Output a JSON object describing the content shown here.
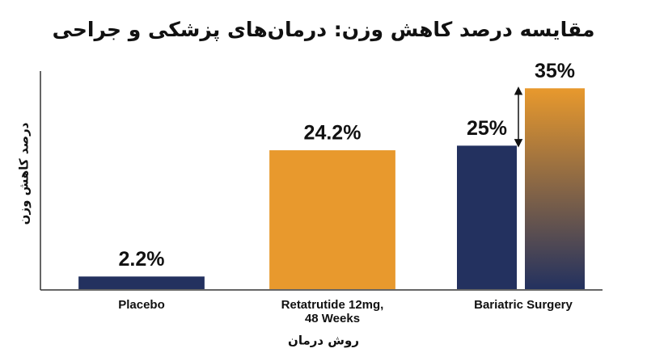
{
  "chart_data": {
    "type": "bar",
    "title": "مقایسه درصد کاهش وزن: درمان‌های پزشکی و جراحی",
    "y_label": "درصد کاهش وزن",
    "x_label": "روش درمان",
    "categories": [
      "Placebo",
      [
        "Retatrutide 12mg,",
        "48 Weeks"
      ],
      "Bariatric Surgery"
    ],
    "series": [
      {
        "color": "#23315f",
        "values": [
          2.2,
          null,
          25
        ],
        "value_labels": [
          "2.2%",
          null,
          "25%"
        ]
      },
      {
        "color": "#e8992d",
        "values": [
          null,
          24.2,
          35
        ],
        "value_labels": [
          null,
          "24.2%",
          "35%"
        ]
      }
    ],
    "ylim": [
      0,
      38
    ]
  }
}
